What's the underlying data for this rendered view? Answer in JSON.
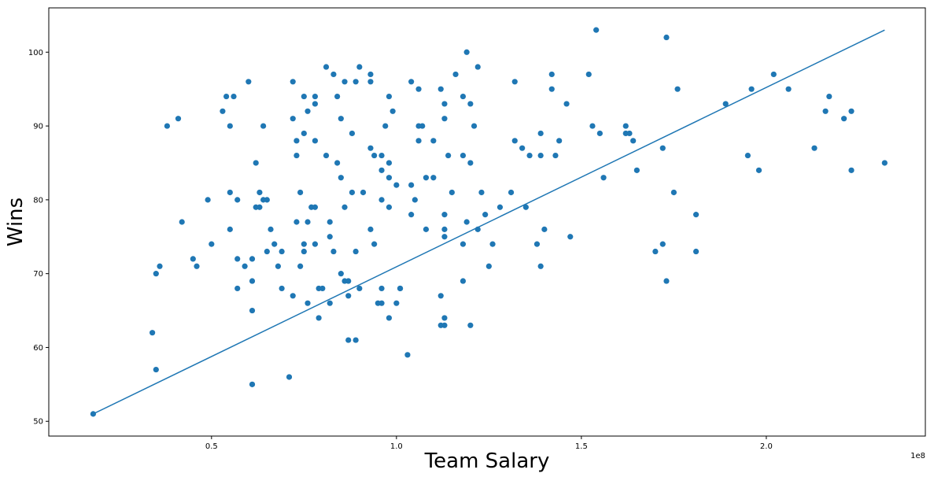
{
  "chart_data": {
    "type": "scatter",
    "title": "",
    "xlabel": "Team Salary",
    "ylabel": "Wins",
    "x_offset_label": "1e8",
    "xlim": [
      0.06,
      2.43
    ],
    "ylim": [
      48,
      106
    ],
    "xticks": [
      0.5,
      1.0,
      1.5,
      2.0
    ],
    "xtick_labels": [
      "0.5",
      "1.0",
      "1.5",
      "2.0"
    ],
    "yticks": [
      50,
      60,
      70,
      80,
      90,
      100
    ],
    "ytick_labels": [
      "50",
      "60",
      "70",
      "80",
      "90",
      "100"
    ],
    "grid": false,
    "colors": {
      "points": "#1f77b4",
      "line": "#1f77b4",
      "axes": "#000000"
    },
    "series": [
      {
        "type": "scatter",
        "points": [
          [
            0.18,
            51
          ],
          [
            0.34,
            62
          ],
          [
            0.35,
            57
          ],
          [
            0.35,
            70
          ],
          [
            0.36,
            71
          ],
          [
            0.38,
            90
          ],
          [
            0.41,
            91
          ],
          [
            0.42,
            77
          ],
          [
            0.45,
            72
          ],
          [
            0.46,
            71
          ],
          [
            0.49,
            80
          ],
          [
            0.5,
            74
          ],
          [
            0.53,
            92
          ],
          [
            0.54,
            94
          ],
          [
            0.55,
            90
          ],
          [
            0.55,
            81
          ],
          [
            0.55,
            76
          ],
          [
            0.56,
            94
          ],
          [
            0.57,
            72
          ],
          [
            0.57,
            68
          ],
          [
            0.57,
            80
          ],
          [
            0.59,
            71
          ],
          [
            0.6,
            96
          ],
          [
            0.61,
            72
          ],
          [
            0.61,
            65
          ],
          [
            0.61,
            69
          ],
          [
            0.61,
            55
          ],
          [
            0.62,
            79
          ],
          [
            0.62,
            85
          ],
          [
            0.63,
            81
          ],
          [
            0.63,
            79
          ],
          [
            0.64,
            80
          ],
          [
            0.64,
            90
          ],
          [
            0.65,
            80
          ],
          [
            0.65,
            73
          ],
          [
            0.66,
            76
          ],
          [
            0.67,
            74
          ],
          [
            0.68,
            71
          ],
          [
            0.69,
            68
          ],
          [
            0.69,
            73
          ],
          [
            0.71,
            56
          ],
          [
            0.72,
            96
          ],
          [
            0.72,
            91
          ],
          [
            0.72,
            67
          ],
          [
            0.73,
            88
          ],
          [
            0.73,
            86
          ],
          [
            0.73,
            77
          ],
          [
            0.74,
            81
          ],
          [
            0.74,
            71
          ],
          [
            0.75,
            94
          ],
          [
            0.75,
            89
          ],
          [
            0.75,
            74
          ],
          [
            0.75,
            73
          ],
          [
            0.76,
            66
          ],
          [
            0.76,
            92
          ],
          [
            0.76,
            77
          ],
          [
            0.77,
            79
          ],
          [
            0.78,
            94
          ],
          [
            0.78,
            93
          ],
          [
            0.78,
            88
          ],
          [
            0.78,
            79
          ],
          [
            0.78,
            74
          ],
          [
            0.79,
            68
          ],
          [
            0.79,
            64
          ],
          [
            0.8,
            68
          ],
          [
            0.81,
            86
          ],
          [
            0.81,
            98
          ],
          [
            0.82,
            77
          ],
          [
            0.82,
            66
          ],
          [
            0.82,
            75
          ],
          [
            0.83,
            73
          ],
          [
            0.83,
            97
          ],
          [
            0.84,
            94
          ],
          [
            0.84,
            85
          ],
          [
            0.85,
            83
          ],
          [
            0.85,
            70
          ],
          [
            0.85,
            91
          ],
          [
            0.86,
            96
          ],
          [
            0.86,
            69
          ],
          [
            0.86,
            79
          ],
          [
            0.87,
            67
          ],
          [
            0.87,
            61
          ],
          [
            0.87,
            69
          ],
          [
            0.88,
            89
          ],
          [
            0.88,
            81
          ],
          [
            0.89,
            96
          ],
          [
            0.89,
            73
          ],
          [
            0.89,
            61
          ],
          [
            0.9,
            98
          ],
          [
            0.9,
            68
          ],
          [
            0.91,
            81
          ],
          [
            0.93,
            96
          ],
          [
            0.93,
            97
          ],
          [
            0.93,
            87
          ],
          [
            0.93,
            76
          ],
          [
            0.94,
            86
          ],
          [
            0.94,
            74
          ],
          [
            0.95,
            66
          ],
          [
            0.96,
            84
          ],
          [
            0.96,
            86
          ],
          [
            0.96,
            80
          ],
          [
            0.96,
            68
          ],
          [
            0.96,
            66
          ],
          [
            0.97,
            90
          ],
          [
            0.98,
            85
          ],
          [
            0.98,
            94
          ],
          [
            0.98,
            79
          ],
          [
            0.98,
            83
          ],
          [
            0.98,
            64
          ],
          [
            0.99,
            92
          ],
          [
            1.0,
            66
          ],
          [
            1.0,
            82
          ],
          [
            1.01,
            68
          ],
          [
            1.01,
            68
          ],
          [
            1.03,
            59
          ],
          [
            1.04,
            96
          ],
          [
            1.04,
            78
          ],
          [
            1.04,
            82
          ],
          [
            1.05,
            80
          ],
          [
            1.06,
            90
          ],
          [
            1.06,
            88
          ],
          [
            1.06,
            95
          ],
          [
            1.07,
            90
          ],
          [
            1.08,
            83
          ],
          [
            1.08,
            76
          ],
          [
            1.1,
            88
          ],
          [
            1.1,
            83
          ],
          [
            1.12,
            63
          ],
          [
            1.12,
            67
          ],
          [
            1.12,
            95
          ],
          [
            1.13,
            91
          ],
          [
            1.13,
            76
          ],
          [
            1.13,
            75
          ],
          [
            1.13,
            78
          ],
          [
            1.13,
            93
          ],
          [
            1.13,
            64
          ],
          [
            1.13,
            63
          ],
          [
            1.14,
            86
          ],
          [
            1.15,
            81
          ],
          [
            1.16,
            97
          ],
          [
            1.18,
            94
          ],
          [
            1.18,
            86
          ],
          [
            1.18,
            69
          ],
          [
            1.18,
            74
          ],
          [
            1.19,
            100
          ],
          [
            1.19,
            77
          ],
          [
            1.2,
            85
          ],
          [
            1.2,
            93
          ],
          [
            1.2,
            63
          ],
          [
            1.21,
            90
          ],
          [
            1.22,
            98
          ],
          [
            1.22,
            76
          ],
          [
            1.23,
            81
          ],
          [
            1.24,
            78
          ],
          [
            1.25,
            71
          ],
          [
            1.26,
            74
          ],
          [
            1.28,
            79
          ],
          [
            1.31,
            81
          ],
          [
            1.32,
            96
          ],
          [
            1.32,
            88
          ],
          [
            1.34,
            87
          ],
          [
            1.35,
            79
          ],
          [
            1.36,
            86
          ],
          [
            1.38,
            74
          ],
          [
            1.39,
            89
          ],
          [
            1.39,
            86
          ],
          [
            1.39,
            71
          ],
          [
            1.4,
            76
          ],
          [
            1.42,
            95
          ],
          [
            1.42,
            97
          ],
          [
            1.43,
            86
          ],
          [
            1.44,
            88
          ],
          [
            1.46,
            93
          ],
          [
            1.47,
            75
          ],
          [
            1.52,
            97
          ],
          [
            1.53,
            90
          ],
          [
            1.54,
            103
          ],
          [
            1.55,
            89
          ],
          [
            1.56,
            83
          ],
          [
            1.62,
            90
          ],
          [
            1.62,
            89
          ],
          [
            1.63,
            89
          ],
          [
            1.64,
            88
          ],
          [
            1.65,
            84
          ],
          [
            1.7,
            73
          ],
          [
            1.72,
            74
          ],
          [
            1.72,
            87
          ],
          [
            1.73,
            102
          ],
          [
            1.73,
            69
          ],
          [
            1.75,
            81
          ],
          [
            1.76,
            95
          ],
          [
            1.81,
            78
          ],
          [
            1.81,
            73
          ],
          [
            1.89,
            93
          ],
          [
            1.95,
            86
          ],
          [
            1.96,
            95
          ],
          [
            1.98,
            84
          ],
          [
            2.02,
            97
          ],
          [
            2.06,
            95
          ],
          [
            2.13,
            87
          ],
          [
            2.16,
            92
          ],
          [
            2.17,
            94
          ],
          [
            2.21,
            91
          ],
          [
            2.23,
            84
          ],
          [
            2.23,
            92
          ],
          [
            2.32,
            85
          ]
        ]
      },
      {
        "type": "line",
        "points": [
          [
            0.18,
            51
          ],
          [
            2.32,
            103
          ]
        ]
      }
    ]
  }
}
